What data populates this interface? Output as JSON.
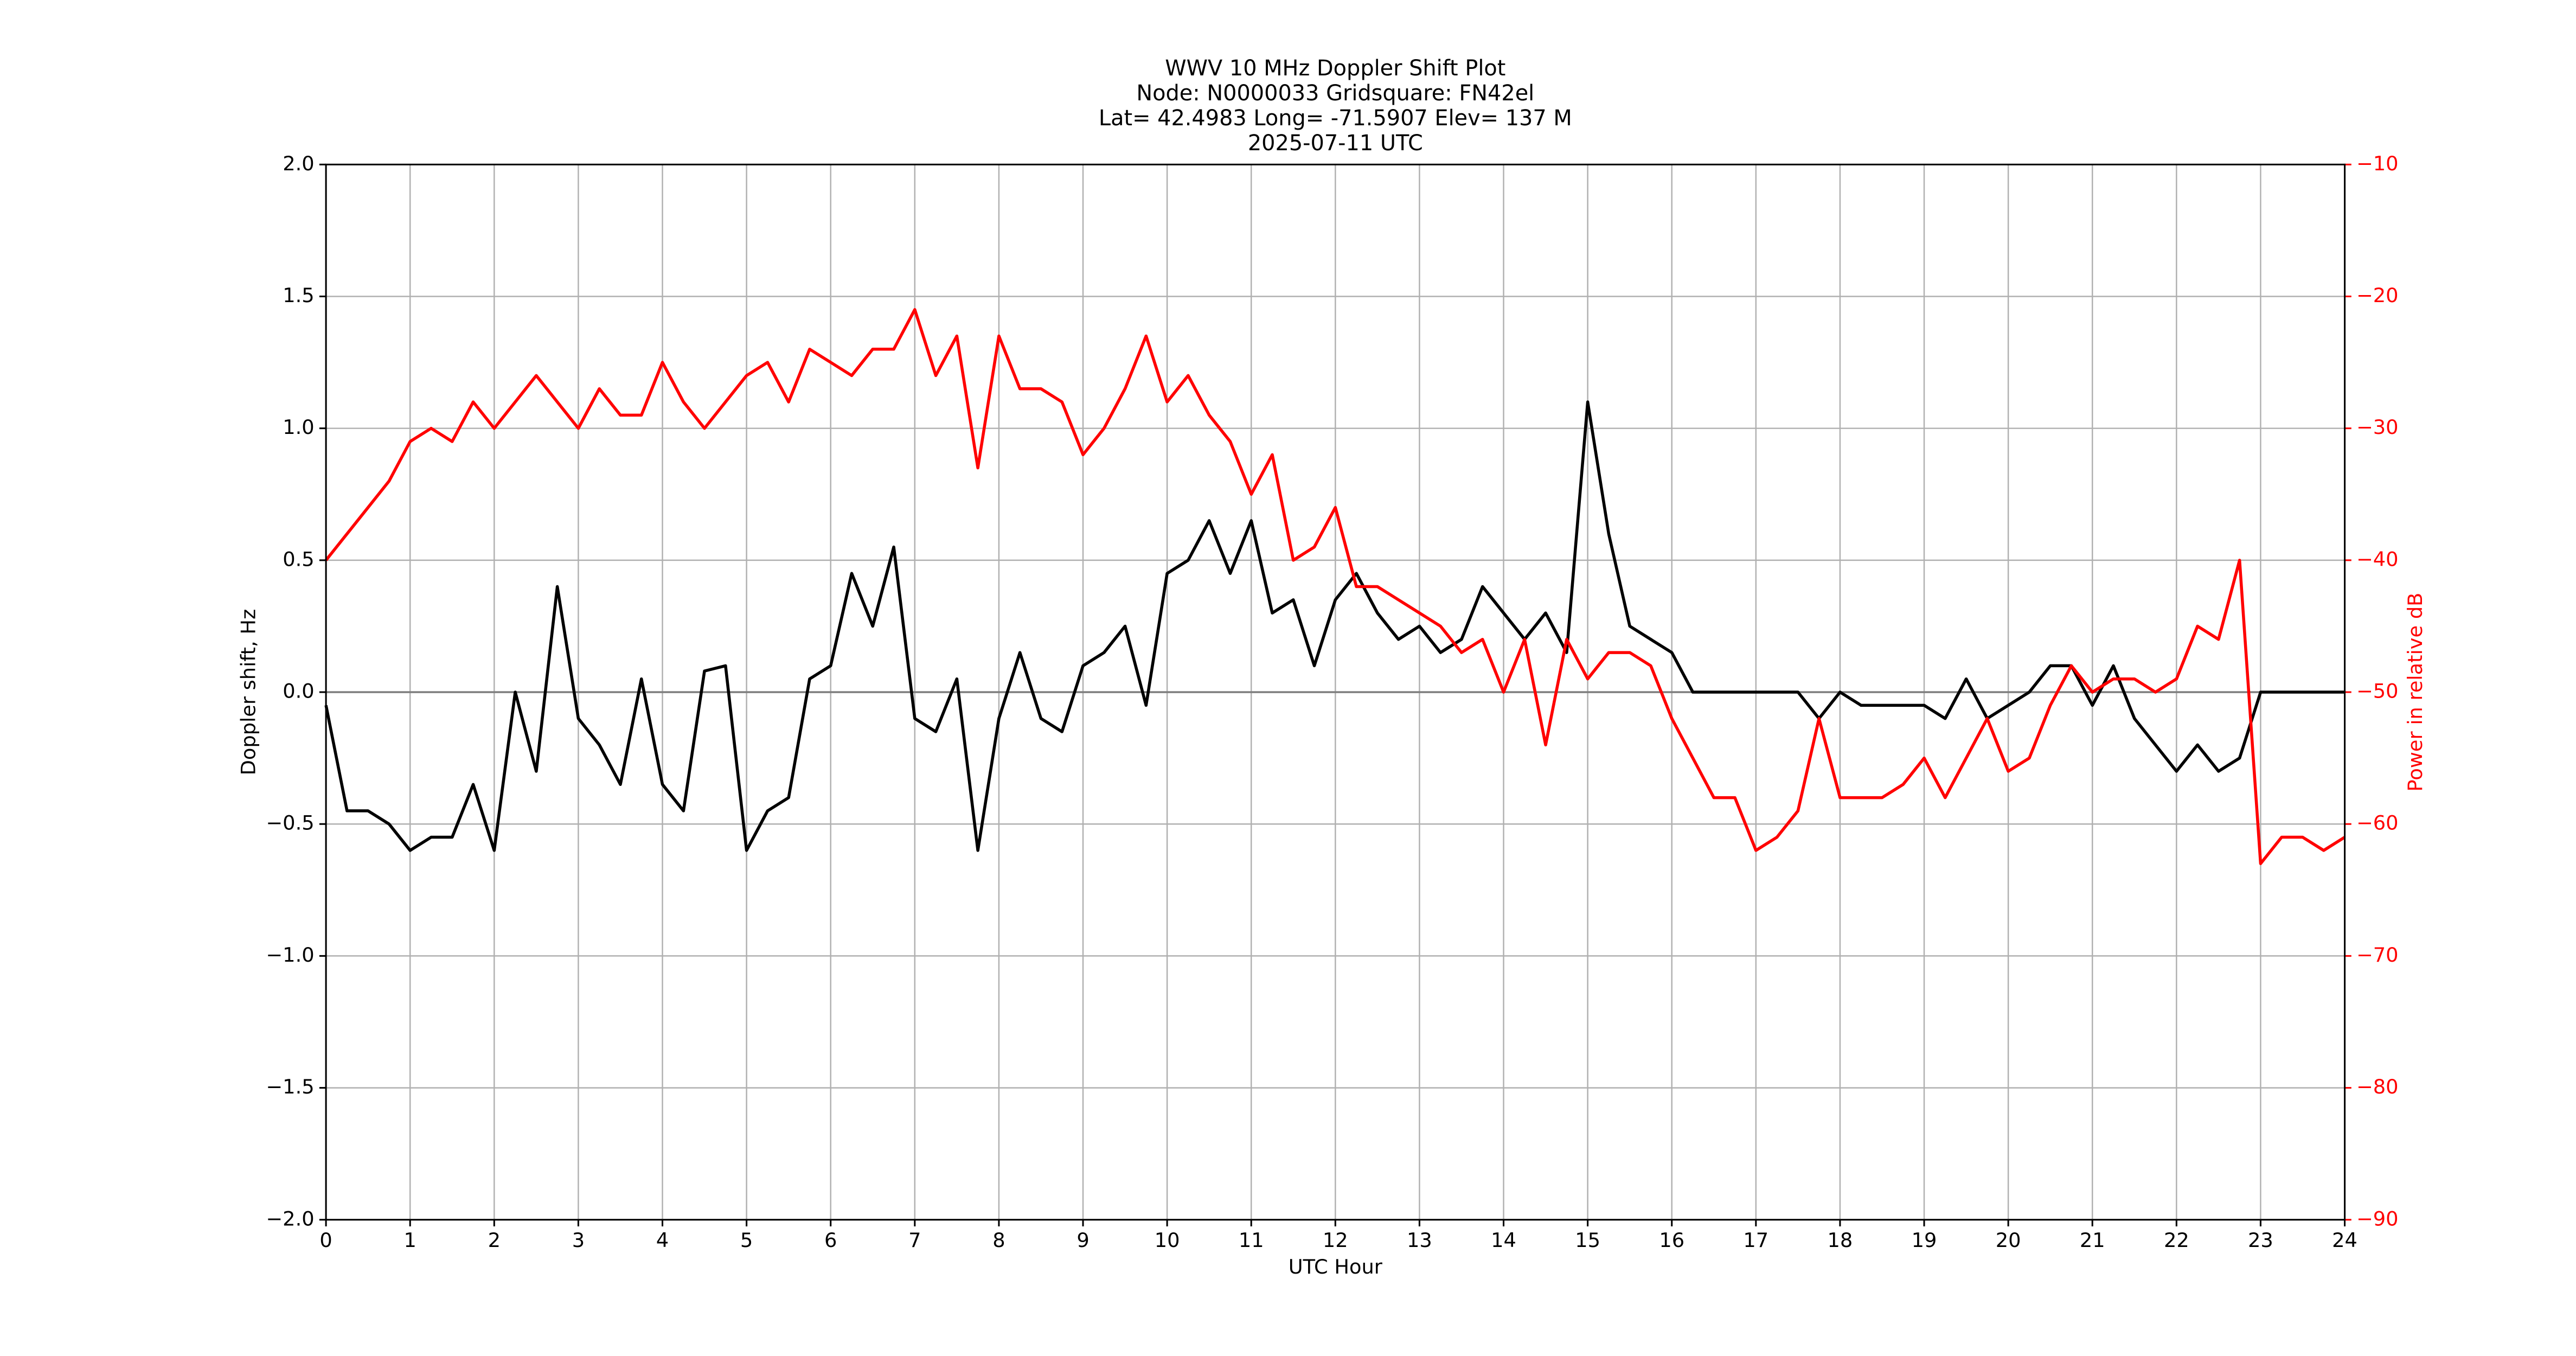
{
  "chart_data": {
    "type": "line",
    "title": [
      "WWV 10 MHz Doppler Shift Plot",
      "Node:  N0000033     Gridsquare:  FN42el",
      "Lat= 42.4983    Long= -71.5907    Elev= 137 M",
      "2025-07-11  UTC"
    ],
    "xlabel": "UTC Hour",
    "ylabel": "Doppler shift, Hz",
    "y2label": "Power in relative dB",
    "x": [
      0,
      0.25,
      0.5,
      0.75,
      1,
      1.25,
      1.5,
      1.75,
      2,
      2.25,
      2.5,
      2.75,
      3,
      3.25,
      3.5,
      3.75,
      4,
      4.25,
      4.5,
      4.75,
      5,
      5.25,
      5.5,
      5.75,
      6,
      6.25,
      6.5,
      6.75,
      7,
      7.25,
      7.5,
      7.75,
      8,
      8.25,
      8.5,
      8.75,
      9,
      9.25,
      9.5,
      9.75,
      10,
      10.25,
      10.5,
      10.75,
      11,
      11.25,
      11.5,
      11.75,
      12,
      12.25,
      12.5,
      12.75,
      13,
      13.25,
      13.5,
      13.75,
      14,
      14.25,
      14.5,
      14.75,
      15,
      15.25,
      15.5,
      15.75,
      16,
      16.25,
      16.5,
      16.75,
      17,
      17.25,
      17.5,
      17.75,
      18,
      18.25,
      18.5,
      18.75,
      19,
      19.25,
      19.5,
      19.75,
      20,
      20.25,
      20.5,
      20.75,
      21,
      21.25,
      21.5,
      21.75,
      22,
      22.25,
      22.5,
      22.75,
      23,
      23.25,
      23.5,
      23.75,
      24
    ],
    "series": [
      {
        "name": "Doppler shift",
        "color": "#000000",
        "values": [
          -0.05,
          -0.45,
          -0.45,
          -0.5,
          -0.6,
          -0.55,
          -0.55,
          -0.35,
          -0.6,
          0.0,
          -0.3,
          0.4,
          -0.1,
          -0.2,
          -0.35,
          0.05,
          -0.35,
          -0.45,
          0.08,
          0.1,
          -0.6,
          -0.45,
          -0.4,
          0.05,
          0.1,
          0.45,
          0.25,
          0.55,
          -0.1,
          -0.15,
          0.05,
          -0.6,
          -0.1,
          0.15,
          -0.1,
          -0.15,
          0.1,
          0.15,
          0.25,
          -0.05,
          0.45,
          0.5,
          0.65,
          0.45,
          0.65,
          0.3,
          0.35,
          0.1,
          0.35,
          0.45,
          0.3,
          0.2,
          0.25,
          0.15,
          0.2,
          0.4,
          0.3,
          0.2,
          0.3,
          0.15,
          1.1,
          0.6,
          0.25,
          0.2,
          0.15,
          0.0,
          0.0,
          0.0,
          0.0,
          0.0,
          0.0,
          -0.1,
          0.0,
          -0.05,
          -0.05,
          -0.05,
          -0.05,
          -0.1,
          0.05,
          -0.1,
          -0.05,
          0.0,
          0.1,
          0.1,
          -0.05,
          0.1,
          -0.1,
          -0.2,
          -0.3,
          -0.2,
          -0.3,
          -0.25,
          0.0,
          0.0,
          0.0,
          0.0,
          0.0
        ]
      },
      {
        "name": "Power",
        "color": "#ff0000",
        "axis": "y2",
        "values": [
          -40,
          -38,
          -36,
          -34,
          -31,
          -30,
          -31,
          -28,
          -30,
          -28,
          -26,
          -28,
          -30,
          -27,
          -29,
          -29,
          -25,
          -28,
          -30,
          -28,
          -26,
          -25,
          -28,
          -24,
          -25,
          -26,
          -24,
          -24,
          -21,
          -26,
          -23,
          -33,
          -23,
          -27,
          -27,
          -28,
          -32,
          -30,
          -27,
          -23,
          -28,
          -26,
          -29,
          -31,
          -35,
          -32,
          -40,
          -39,
          -36,
          -42,
          -42,
          -43,
          -44,
          -45,
          -47,
          -46,
          -50,
          -46,
          -54,
          -46,
          -49,
          -47,
          -47,
          -48,
          -52,
          -55,
          -58,
          -58,
          -62,
          -61,
          -59,
          -52,
          -58,
          -58,
          -58,
          -57,
          -55,
          -58,
          -55,
          -52,
          -56,
          -55,
          -51,
          -48,
          -50,
          -49,
          -49,
          -50,
          -49,
          -45,
          -46,
          -40,
          -63,
          -61,
          -61,
          -62,
          -61
        ]
      }
    ],
    "xlim": [
      0,
      24
    ],
    "xticks": [
      0,
      1,
      2,
      3,
      4,
      5,
      6,
      7,
      8,
      9,
      10,
      11,
      12,
      13,
      14,
      15,
      16,
      17,
      18,
      19,
      20,
      21,
      22,
      23,
      24
    ],
    "ylim": [
      -2,
      2
    ],
    "yticks": [
      {
        "value": -2,
        "label": "−2.0"
      },
      {
        "value": -1.5,
        "label": "−1.5"
      },
      {
        "value": -1,
        "label": "−1.0"
      },
      {
        "value": -0.5,
        "label": "−0.5"
      },
      {
        "value": 0,
        "label": "0.0"
      },
      {
        "value": 0.5,
        "label": "0.5"
      },
      {
        "value": 1,
        "label": "1.0"
      },
      {
        "value": 1.5,
        "label": "1.5"
      },
      {
        "value": 2,
        "label": "2.0"
      }
    ],
    "y2lim": [
      -90,
      -10
    ],
    "y2ticks": [
      {
        "value": -90,
        "label": "−90"
      },
      {
        "value": -80,
        "label": "−80"
      },
      {
        "value": -70,
        "label": "−70"
      },
      {
        "value": -60,
        "label": "−60"
      },
      {
        "value": -50,
        "label": "−50"
      },
      {
        "value": -40,
        "label": "−40"
      },
      {
        "value": -30,
        "label": "−30"
      },
      {
        "value": -20,
        "label": "−20"
      },
      {
        "value": -10,
        "label": "−10"
      }
    ],
    "y2color": "#ff0000",
    "grid": true
  }
}
